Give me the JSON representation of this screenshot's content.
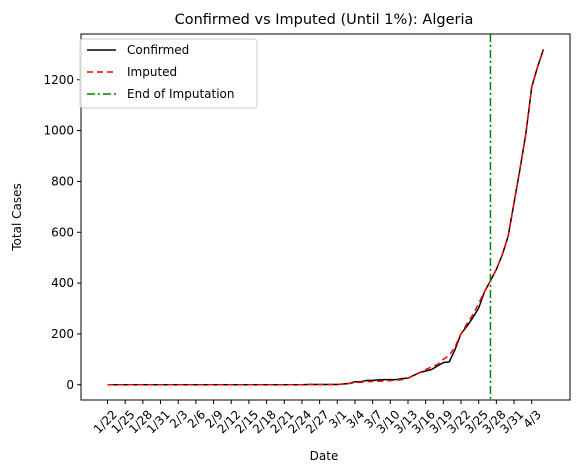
{
  "chart_data": {
    "type": "line",
    "title": "Confirmed vs Imputed (Until 1%): Algeria",
    "xlabel": "Date",
    "ylabel": "Total Cases",
    "ylim": [
      -60,
      1380
    ],
    "yticks": [
      0,
      200,
      400,
      600,
      800,
      1000,
      1200
    ],
    "x_categories": [
      "1/22",
      "1/23",
      "1/24",
      "1/25",
      "1/26",
      "1/27",
      "1/28",
      "1/29",
      "1/30",
      "1/31",
      "2/1",
      "2/2",
      "2/3",
      "2/4",
      "2/5",
      "2/6",
      "2/7",
      "2/8",
      "2/9",
      "2/10",
      "2/11",
      "2/12",
      "2/13",
      "2/14",
      "2/15",
      "2/16",
      "2/17",
      "2/18",
      "2/19",
      "2/20",
      "2/21",
      "2/22",
      "2/23",
      "2/24",
      "2/25",
      "2/26",
      "2/27",
      "2/28",
      "2/29",
      "3/1",
      "3/2",
      "3/3",
      "3/4",
      "3/5",
      "3/6",
      "3/7",
      "3/8",
      "3/9",
      "3/10",
      "3/11",
      "3/12",
      "3/13",
      "3/14",
      "3/15",
      "3/16",
      "3/17",
      "3/18",
      "3/19",
      "3/20",
      "3/21",
      "3/22",
      "3/23",
      "3/24",
      "3/25",
      "3/26",
      "3/27",
      "3/28",
      "3/29",
      "3/30",
      "3/31",
      "4/1",
      "4/2",
      "4/3",
      "4/4",
      "4/5"
    ],
    "xtick_labels": [
      "1/22",
      "1/25",
      "1/28",
      "1/31",
      "2/3",
      "2/6",
      "2/9",
      "2/12",
      "2/15",
      "2/18",
      "2/21",
      "2/24",
      "2/27",
      "3/1",
      "3/4",
      "3/7",
      "3/10",
      "3/13",
      "3/16",
      "3/19",
      "3/22",
      "3/25",
      "3/28",
      "3/31",
      "4/3"
    ],
    "series": [
      {
        "name": "Confirmed",
        "color": "#000000",
        "style": "solid",
        "values": [
          0,
          0,
          0,
          0,
          0,
          0,
          0,
          0,
          0,
          0,
          0,
          0,
          0,
          0,
          0,
          0,
          0,
          0,
          0,
          0,
          0,
          0,
          0,
          0,
          0,
          0,
          0,
          0,
          0,
          0,
          0,
          0,
          0,
          0,
          1,
          1,
          1,
          1,
          1,
          1,
          3,
          5,
          12,
          12,
          17,
          17,
          19,
          20,
          20,
          20,
          24,
          26,
          37,
          48,
          54,
          60,
          74,
          87,
          90,
          139,
          201,
          230,
          264,
          302,
          367,
          409,
          454,
          511,
          584,
          716,
          847,
          986,
          1171,
          1251,
          1320
        ]
      },
      {
        "name": "Imputed",
        "color": "#ff0000",
        "style": "dashed",
        "values": [
          0,
          0,
          0,
          0,
          0,
          0,
          0,
          0,
          0,
          0,
          0,
          0,
          0,
          0,
          0,
          0,
          0,
          0,
          0,
          0,
          0,
          0,
          0,
          0,
          0,
          0,
          0,
          0,
          0,
          0,
          0,
          0,
          0,
          0,
          1,
          1,
          1,
          1,
          1,
          1,
          3,
          5,
          8,
          10,
          12,
          13,
          14,
          15,
          16,
          18,
          20,
          26,
          37,
          48,
          60,
          70,
          80,
          100,
          115,
          150,
          201,
          240,
          275,
          320,
          367,
          409,
          454,
          511,
          584,
          716,
          847,
          986,
          1171,
          1251,
          1320
        ]
      }
    ],
    "vline": {
      "name": "End of Imputation",
      "x": "3/27",
      "color": "#008000",
      "style": "dashdot"
    },
    "legend": {
      "placement": "upper-left"
    },
    "grid": false
  }
}
